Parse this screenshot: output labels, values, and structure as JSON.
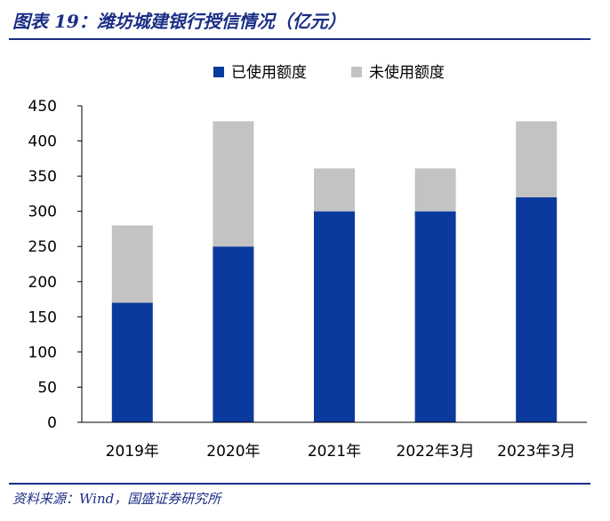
{
  "header": {
    "title": "图表 19：潍坊城建银行授信情况（亿元）"
  },
  "footer": {
    "source": "资料来源：Wind，国盛证券研究所"
  },
  "colors": {
    "title": "#1b2e86",
    "rule": "#1b2e86",
    "used": "#0b3a9e",
    "unused": "#c3c3c3"
  },
  "chart_data": {
    "type": "bar",
    "stacked": true,
    "categories": [
      "2019年",
      "2020年",
      "2021年",
      "2022年3月",
      "2023年3月"
    ],
    "series": [
      {
        "name": "已使用额度",
        "color": "#0b3a9e",
        "values": [
          170,
          250,
          300,
          300,
          320
        ]
      },
      {
        "name": "未使用额度",
        "color": "#c3c3c3",
        "values": [
          110,
          178,
          61,
          61,
          108
        ]
      }
    ],
    "ylim": [
      0,
      450
    ],
    "yticks": [
      0,
      50,
      100,
      150,
      200,
      250,
      300,
      350,
      400,
      450
    ],
    "xlabel": "",
    "ylabel": "",
    "grid": false,
    "legend_position": "top-center"
  }
}
